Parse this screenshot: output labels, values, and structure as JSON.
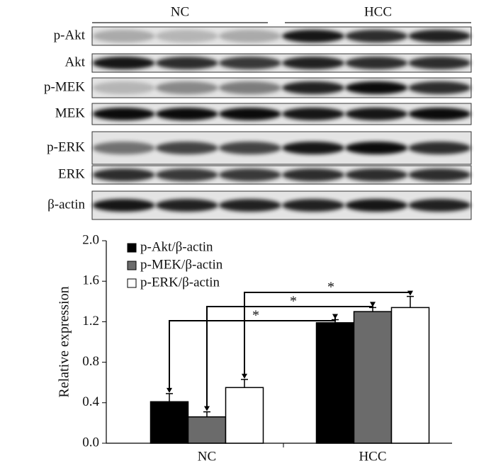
{
  "blot": {
    "groups": [
      "NC",
      "HCC"
    ],
    "rows": [
      "p-Akt",
      "Akt",
      "p-MEK",
      "MEK",
      "p-ERK",
      "ERK",
      "β-actin"
    ]
  },
  "chart_data": {
    "type": "bar",
    "ylabel": "Relative expression",
    "categories": [
      "NC",
      "HCC"
    ],
    "series": [
      {
        "name": "p-Akt/β-actin",
        "color": "#000000",
        "values": [
          0.41,
          1.19
        ],
        "errors": [
          0.08,
          0.03
        ]
      },
      {
        "name": "p-MEK/β-actin",
        "color": "#6b6b6b",
        "values": [
          0.26,
          1.3
        ],
        "errors": [
          0.05,
          0.04
        ]
      },
      {
        "name": "p-ERK/β-actin",
        "color": "#ffffff",
        "values": [
          0.55,
          1.34
        ],
        "errors": [
          0.08,
          0.11
        ]
      }
    ],
    "ylim": [
      0,
      2
    ],
    "yticks": [
      {
        "value": 0,
        "label": "0.0"
      },
      0.4,
      0.8,
      1.2,
      1.6,
      {
        "value": 2,
        "label": "2.0"
      }
    ],
    "legend": "upper left",
    "annotations": [
      "*",
      "*",
      "*"
    ]
  }
}
